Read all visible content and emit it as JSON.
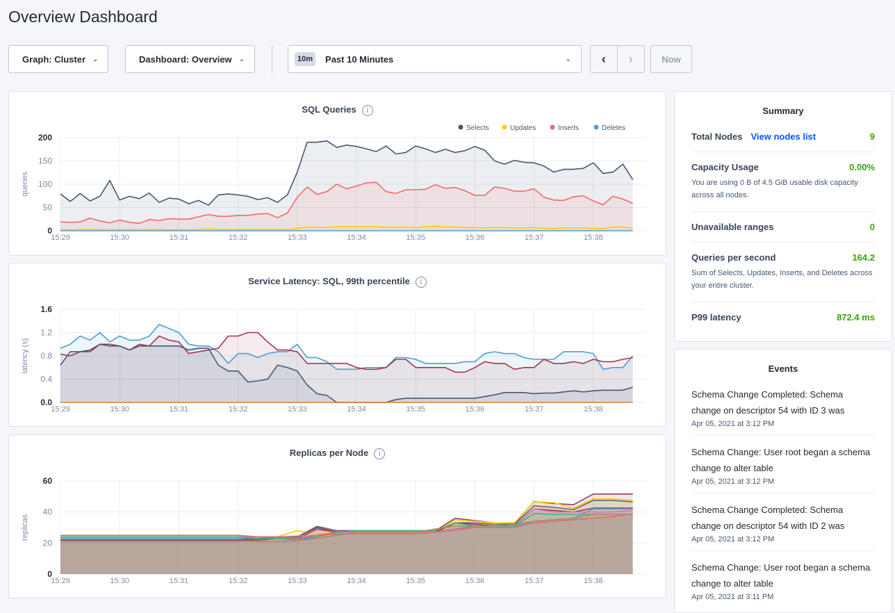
{
  "page_title": "Overview Dashboard",
  "controls": {
    "graph_label": "Graph: Cluster",
    "dashboard_label": "Dashboard: Overview",
    "time_badge": "10m",
    "time_label": "Past 10 Minutes",
    "prev_icon": "chevron-left-icon",
    "next_icon": "chevron-right-icon",
    "now_label": "Now"
  },
  "summary": {
    "title": "Summary",
    "total_nodes_label": "Total Nodes",
    "view_nodes_link": "View nodes list",
    "total_nodes_value": "9",
    "capacity_label": "Capacity Usage",
    "capacity_value": "0.00%",
    "capacity_desc": "You are using 0 B of 4.5 GiB usable disk capacity across all nodes.",
    "unavailable_label": "Unavailable ranges",
    "unavailable_value": "0",
    "qps_label": "Queries per second",
    "qps_value": "164.2",
    "qps_desc": "Sum of Selects, Updates, Inserts, and Deletes across your entire cluster.",
    "p99_label": "P99 latency",
    "p99_value": "872.4 ms",
    "value_color": "#37a806",
    "link_color": "#0055ff"
  },
  "events": {
    "title": "Events",
    "items": [
      {
        "text": "Schema Change Completed: Schema change on descriptor 54 with ID 3 was",
        "time": "Apr 05, 2021 at 3:12 PM"
      },
      {
        "text": "Schema Change: User root began a schema change to alter table",
        "time": "Apr 05, 2021 at 3:12 PM"
      },
      {
        "text": "Schema Change Completed: Schema change on descriptor 54 with ID 2 was",
        "time": "Apr 05, 2021 at 3:12 PM"
      },
      {
        "text": "Schema Change: User root began a schema change to alter table",
        "time": "Apr 05, 2021 at 3:11 PM"
      }
    ]
  },
  "chart_data": [
    {
      "type": "area",
      "title": "SQL Queries",
      "ylabel": "queries",
      "ylim": [
        0,
        200
      ],
      "yticks": [
        "0",
        "50",
        "100",
        "150",
        "200"
      ],
      "xticks": [
        "15:29",
        "15:30",
        "15:31",
        "15:32",
        "15:33",
        "15:34",
        "15:35",
        "15:36",
        "15:37",
        "15:38"
      ],
      "grid": true,
      "legend": "top-right",
      "x": [
        "15:29:00",
        "15:29:10",
        "15:29:20",
        "15:29:30",
        "15:29:40",
        "15:29:50",
        "15:30:00",
        "15:30:10",
        "15:30:20",
        "15:30:30",
        "15:30:40",
        "15:30:50",
        "15:31:00",
        "15:31:10",
        "15:31:20",
        "15:31:30",
        "15:31:40",
        "15:31:50",
        "15:32:00",
        "15:32:10",
        "15:32:20",
        "15:32:30",
        "15:32:40",
        "15:32:50",
        "15:33:00",
        "15:33:10",
        "15:33:20",
        "15:33:30",
        "15:33:40",
        "15:33:50",
        "15:34:00",
        "15:34:10",
        "15:34:20",
        "15:34:30",
        "15:34:40",
        "15:34:50",
        "15:35:00",
        "15:35:10",
        "15:35:20",
        "15:35:30",
        "15:35:40",
        "15:35:50",
        "15:36:00",
        "15:36:10",
        "15:36:20",
        "15:36:30",
        "15:36:40",
        "15:36:50",
        "15:37:00",
        "15:37:10",
        "15:37:20",
        "15:37:30",
        "15:37:40",
        "15:37:50",
        "15:38:00",
        "15:38:10",
        "15:38:20",
        "15:38:30",
        "15:38:40"
      ],
      "series": [
        {
          "name": "Selects",
          "color": "#475872",
          "values": [
            79,
            63,
            80,
            64,
            74,
            108,
            66,
            74,
            69,
            81,
            61,
            70,
            68,
            58,
            65,
            55,
            77,
            79,
            77,
            74,
            67,
            71,
            61,
            77,
            126,
            190,
            190,
            193,
            179,
            184,
            181,
            176,
            170,
            182,
            165,
            168,
            182,
            176,
            168,
            175,
            168,
            172,
            181,
            173,
            150,
            143,
            151,
            147,
            146,
            139,
            126,
            132,
            132,
            134,
            146,
            123,
            126,
            143,
            110
          ]
        },
        {
          "name": "Updates",
          "color": "#ffcd02",
          "values": [
            2,
            2,
            3,
            3,
            3,
            2,
            2,
            3,
            2,
            3,
            3,
            2,
            2,
            2,
            3,
            4,
            3,
            3,
            3,
            3,
            3,
            3,
            3,
            3,
            5,
            8,
            7,
            7,
            9,
            9,
            9,
            9,
            9,
            7,
            8,
            7,
            7,
            9,
            10,
            8,
            8,
            7,
            7,
            6,
            7,
            7,
            6,
            6,
            7,
            5,
            5,
            6,
            6,
            6,
            5,
            5,
            8,
            8,
            6
          ]
        },
        {
          "name": "Inserts",
          "color": "#f16969",
          "values": [
            19,
            18,
            19,
            27,
            21,
            17,
            23,
            18,
            16,
            24,
            22,
            26,
            25,
            25,
            30,
            35,
            31,
            31,
            33,
            33,
            36,
            37,
            28,
            38,
            72,
            94,
            78,
            84,
            100,
            90,
            96,
            103,
            104,
            84,
            80,
            88,
            88,
            89,
            99,
            91,
            93,
            86,
            76,
            76,
            94,
            91,
            85,
            85,
            90,
            72,
            66,
            65,
            73,
            75,
            64,
            56,
            74,
            68,
            59
          ]
        },
        {
          "name": "Deletes",
          "color": "#4e9fd1",
          "values": [
            0,
            0,
            0,
            0,
            0,
            0,
            0,
            0,
            0,
            0,
            0,
            0,
            0,
            0,
            0,
            0,
            0,
            0,
            0,
            0,
            0,
            0,
            0,
            0,
            0,
            0,
            0,
            0,
            0,
            0,
            0,
            0,
            0,
            0,
            0,
            0,
            0,
            0,
            0,
            0,
            0,
            0,
            0,
            0,
            0,
            0,
            0,
            0,
            0,
            0,
            0,
            0,
            0,
            0,
            0,
            0,
            0,
            0,
            0
          ]
        }
      ]
    },
    {
      "type": "area",
      "title": "Service Latency: SQL, 99th percentile",
      "ylabel": "latency (s)",
      "ylim": [
        0,
        1.6
      ],
      "yticks": [
        "0.0",
        "0.4",
        "0.8",
        "1.2",
        "1.6"
      ],
      "xticks": [
        "15:29",
        "15:30",
        "15:31",
        "15:32",
        "15:33",
        "15:34",
        "15:35",
        "15:36",
        "15:37",
        "15:38"
      ],
      "grid": true,
      "x": [
        "15:29:00",
        "15:29:10",
        "15:29:20",
        "15:29:30",
        "15:29:40",
        "15:29:50",
        "15:30:00",
        "15:30:10",
        "15:30:20",
        "15:30:30",
        "15:30:40",
        "15:30:50",
        "15:31:00",
        "15:31:10",
        "15:31:20",
        "15:31:30",
        "15:31:40",
        "15:31:50",
        "15:32:00",
        "15:32:10",
        "15:32:20",
        "15:32:30",
        "15:32:40",
        "15:32:50",
        "15:33:00",
        "15:33:10",
        "15:33:20",
        "15:33:30",
        "15:33:40",
        "15:33:50",
        "15:34:00",
        "15:34:10",
        "15:34:20",
        "15:34:30",
        "15:34:40",
        "15:34:50",
        "15:35:00",
        "15:35:10",
        "15:35:20",
        "15:35:30",
        "15:35:40",
        "15:35:50",
        "15:36:00",
        "15:36:10",
        "15:36:20",
        "15:36:30",
        "15:36:40",
        "15:36:50",
        "15:37:00",
        "15:37:10",
        "15:37:20",
        "15:37:30",
        "15:37:40",
        "15:37:50",
        "15:38:00",
        "15:38:10",
        "15:38:20",
        "15:38:30",
        "15:38:40"
      ],
      "series": [
        {
          "color": "#4e9fd1",
          "values": [
            0.93,
            1.0,
            1.14,
            1.07,
            1.2,
            1.04,
            1.14,
            1.07,
            1.07,
            1.14,
            1.34,
            1.27,
            1.2,
            1.0,
            0.97,
            0.97,
            0.87,
            0.67,
            0.84,
            0.84,
            0.77,
            0.84,
            0.87,
            0.87,
            1.0,
            0.77,
            0.77,
            0.7,
            0.57,
            0.57,
            0.57,
            0.6,
            0.6,
            0.6,
            0.77,
            0.77,
            0.74,
            0.67,
            0.67,
            0.67,
            0.67,
            0.7,
            0.7,
            0.84,
            0.87,
            0.84,
            0.84,
            0.77,
            0.74,
            0.74,
            0.74,
            0.87,
            0.87,
            0.87,
            0.84,
            0.57,
            0.6,
            0.6,
            0.8
          ]
        },
        {
          "color": "#a3364f",
          "values": [
            0.83,
            0.8,
            0.87,
            0.87,
            1.0,
            1.0,
            0.97,
            0.9,
            1.0,
            0.97,
            1.14,
            1.07,
            1.04,
            0.84,
            0.87,
            0.9,
            0.93,
            1.14,
            1.14,
            1.2,
            1.2,
            1.04,
            0.9,
            0.9,
            0.87,
            0.67,
            0.67,
            0.67,
            0.67,
            0.67,
            0.6,
            0.57,
            0.57,
            0.6,
            0.74,
            0.74,
            0.6,
            0.6,
            0.6,
            0.6,
            0.52,
            0.52,
            0.6,
            0.7,
            0.67,
            0.67,
            0.57,
            0.6,
            0.6,
            0.74,
            0.67,
            0.67,
            0.7,
            0.67,
            0.74,
            0.7,
            0.7,
            0.74,
            0.77
          ]
        },
        {
          "color": "#475872",
          "values": [
            0.64,
            0.87,
            0.87,
            0.9,
            1.0,
            0.97,
            0.97,
            0.9,
            0.97,
            0.97,
            0.97,
            0.97,
            0.97,
            0.9,
            0.93,
            0.93,
            0.64,
            0.54,
            0.54,
            0.35,
            0.37,
            0.4,
            0.64,
            0.6,
            0.54,
            0.3,
            0.15,
            0.12,
            0,
            0,
            0,
            0,
            0,
            0,
            0.05,
            0.07,
            0.07,
            0.07,
            0.07,
            0.07,
            0.07,
            0.07,
            0.07,
            0.1,
            0.13,
            0.17,
            0.17,
            0.17,
            0.15,
            0.16,
            0.16,
            0.18,
            0.2,
            0.18,
            0.2,
            0.21,
            0.21,
            0.21,
            0.26
          ]
        },
        {
          "color": "#d7813f",
          "values": [
            0,
            0,
            0,
            0,
            0,
            0,
            0,
            0,
            0,
            0,
            0,
            0,
            0,
            0,
            0,
            0,
            0,
            0,
            0,
            0,
            0,
            0,
            0,
            0,
            0,
            0,
            0,
            0,
            0,
            0,
            0,
            0,
            0,
            0,
            0,
            0,
            0,
            0,
            0,
            0,
            0,
            0,
            0,
            0,
            0,
            0,
            0,
            0,
            0,
            0,
            0,
            0,
            0,
            0,
            0,
            0,
            0,
            0,
            0
          ]
        }
      ]
    },
    {
      "type": "area",
      "title": "Replicas per Node",
      "ylabel": "replicas",
      "ylim": [
        0,
        60
      ],
      "yticks": [
        "0",
        "20",
        "40",
        "60"
      ],
      "xticks": [
        "15:29",
        "15:30",
        "15:31",
        "15:32",
        "15:33",
        "15:34",
        "15:35",
        "15:36",
        "15:37",
        "15:38"
      ],
      "grid": true,
      "x": [
        "15:29:00",
        "15:29:20",
        "15:29:40",
        "15:30:00",
        "15:30:20",
        "15:30:40",
        "15:31:00",
        "15:31:20",
        "15:31:40",
        "15:32:00",
        "15:32:20",
        "15:32:40",
        "15:33:00",
        "15:33:20",
        "15:33:40",
        "15:34:00",
        "15:34:20",
        "15:34:40",
        "15:35:00",
        "15:35:20",
        "15:35:40",
        "15:36:00",
        "15:36:20",
        "15:36:40",
        "15:37:00",
        "15:37:20",
        "15:37:40",
        "15:38:00",
        "15:38:20",
        "15:38:40"
      ],
      "series": [
        {
          "color": "#8e3b73",
          "values": [
            22,
            22,
            22,
            22,
            22,
            22,
            22,
            22,
            22,
            22,
            23,
            24,
            24,
            30.7,
            28,
            28,
            28,
            28,
            28,
            28,
            35.9,
            34.5,
            33,
            32.6,
            46.7,
            45.5,
            44.7,
            51.6,
            51.6,
            51.6
          ]
        },
        {
          "color": "#ffcd02",
          "values": [
            22,
            22,
            22,
            22,
            22,
            22,
            22,
            22,
            22,
            22,
            23,
            24,
            28,
            26,
            27,
            27,
            27,
            27,
            27,
            27,
            35,
            34,
            33,
            33,
            46.5,
            46,
            42.5,
            48.5,
            48.5,
            47.5
          ]
        },
        {
          "color": "#5a6577",
          "values": [
            22,
            22,
            22,
            22,
            22,
            22,
            22,
            22,
            22,
            22,
            23,
            24,
            24,
            30,
            27,
            27,
            27,
            27,
            27,
            27,
            33,
            33,
            32,
            32,
            44,
            43,
            41.5,
            47.5,
            47.5,
            46.5
          ]
        },
        {
          "color": "#a3364f",
          "values": [
            22,
            22,
            22,
            22,
            22,
            22,
            22,
            22,
            22,
            22,
            22,
            23,
            23,
            29,
            27,
            27,
            27,
            27,
            27,
            27,
            33,
            32,
            31,
            31,
            42,
            41,
            40,
            42.5,
            42.5,
            42.5
          ]
        },
        {
          "color": "#4e9fd1",
          "values": [
            23,
            23,
            23,
            23,
            23,
            23,
            23,
            23,
            23,
            23,
            23,
            23,
            22,
            24,
            27,
            27,
            27,
            27,
            27,
            27,
            29,
            31,
            31,
            31,
            34,
            35,
            36,
            42,
            42,
            42
          ]
        },
        {
          "color": "#d17aaf",
          "values": [
            24,
            24,
            24,
            24,
            24,
            24,
            24,
            24,
            24,
            24,
            24,
            24,
            24.5,
            25,
            27,
            27,
            27,
            27,
            27,
            27,
            28,
            30,
            30,
            31,
            42,
            40,
            40,
            40,
            40,
            41
          ]
        },
        {
          "color": "#3cb37a",
          "values": [
            24,
            24,
            24,
            24,
            24,
            24,
            24,
            24,
            24,
            24,
            23,
            23,
            23,
            24,
            27,
            28,
            28,
            28,
            28,
            28,
            33,
            31,
            31,
            31,
            39,
            38.5,
            38.5,
            38.5,
            38.5,
            38.5
          ]
        },
        {
          "color": "#e06c6c",
          "values": [
            25,
            25,
            25,
            25,
            25,
            25,
            25,
            25,
            25,
            25,
            24,
            24,
            23,
            25,
            26,
            26,
            26,
            26,
            26,
            27,
            29,
            30,
            30,
            30,
            33,
            34,
            35,
            36,
            37,
            39
          ]
        },
        {
          "color": "#b08a5a",
          "values": [
            21,
            21,
            21,
            21,
            21,
            21,
            21,
            21,
            21,
            21,
            21,
            21,
            21.5,
            23,
            25,
            27,
            27,
            27,
            27,
            29,
            31,
            31,
            31,
            32,
            34,
            35,
            36,
            38.5,
            38.5,
            38.5
          ]
        }
      ]
    }
  ]
}
